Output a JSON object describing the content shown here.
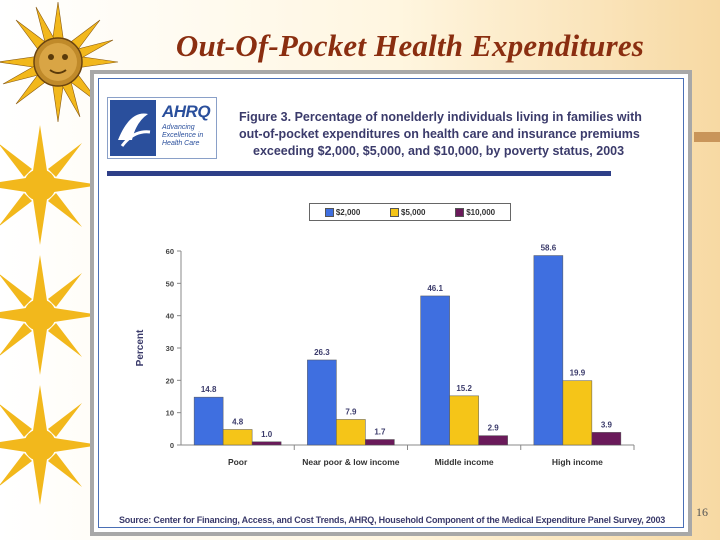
{
  "slide": {
    "title": "Out-Of-Pocket Health Expenditures",
    "page_number": "16"
  },
  "logo": {
    "brand": "AHRQ",
    "tagline": "Advancing\nExcellence in\nHealth Care"
  },
  "figure": {
    "heading_lines": [
      "Figure 3. Percentage of nonelderly individuals living in families with",
      "out-of-pocket expenditures on health care and insurance premiums",
      "exceeding $2,000, $5,000, and $10,000, by poverty status, 2003"
    ],
    "source": "Source: Center for Financing, Access, and Cost Trends, AHRQ, Household Component of the Medical Expenditure Panel Survey, 2003"
  },
  "colors": {
    "series_2000": "#3f6fe0",
    "series_5000": "#f5c518",
    "series_10000": "#6a1a5a"
  },
  "chart_data": {
    "type": "bar",
    "title": "",
    "xlabel": "",
    "ylabel": "Percent",
    "ylim": [
      0,
      60
    ],
    "yticks": [
      0,
      10,
      20,
      30,
      40,
      50,
      60
    ],
    "legend_position": "top",
    "categories": [
      "Poor",
      "Near poor & low income",
      "Middle income",
      "High income"
    ],
    "series": [
      {
        "name": "$2,000",
        "values": [
          14.8,
          26.3,
          46.1,
          58.6
        ],
        "labels": [
          "14.8",
          "26.3",
          "46.1",
          "58.6"
        ]
      },
      {
        "name": "$5,000",
        "values": [
          4.8,
          7.9,
          15.2,
          19.9
        ],
        "labels": [
          "4.8",
          "7.9",
          "15.2",
          "19.9"
        ]
      },
      {
        "name": "$10,000",
        "values": [
          1.0,
          1.7,
          2.9,
          3.9
        ],
        "labels": [
          "1.0",
          "1.7",
          "2.9",
          "3.9"
        ]
      }
    ]
  }
}
